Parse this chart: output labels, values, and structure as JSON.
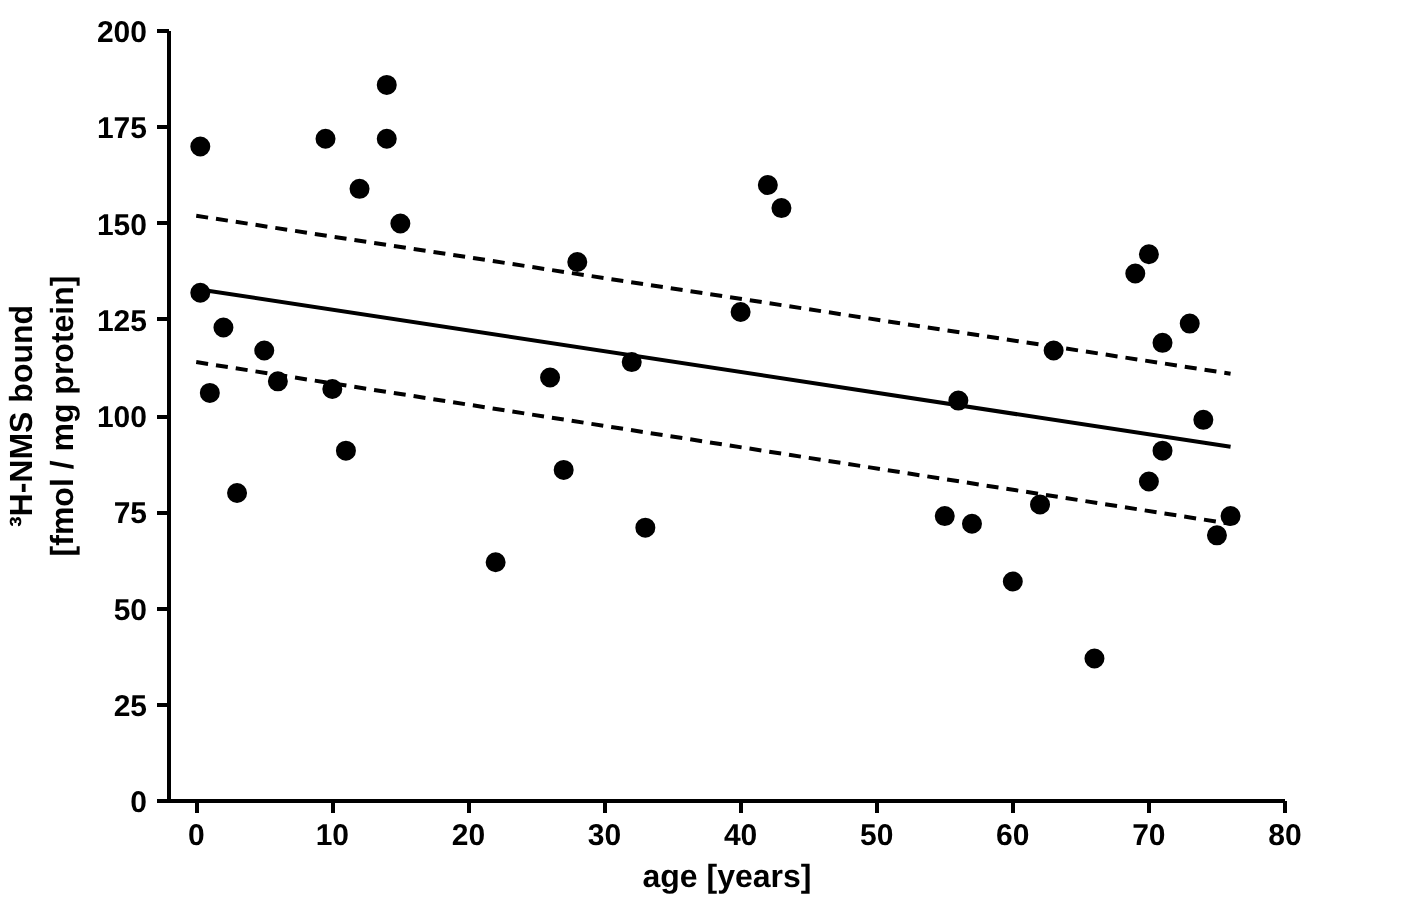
{
  "chart_data": {
    "type": "scatter",
    "xlabel": "age [years]",
    "ylabel": "³H-NMS bound\n[fmol / mg protein]",
    "xlim": [
      -2,
      80
    ],
    "ylim": [
      0,
      200
    ],
    "xticks": [
      0,
      10,
      20,
      30,
      40,
      50,
      60,
      70,
      80
    ],
    "yticks": [
      0,
      25,
      50,
      75,
      100,
      125,
      150,
      175,
      200
    ],
    "grid": false,
    "series": [
      {
        "marker": "circle",
        "color": "#000000",
        "x": [
          0.3,
          0.3,
          1,
          2,
          3,
          5,
          6,
          9.5,
          10,
          11,
          12,
          14,
          14,
          15,
          22,
          26,
          27,
          28,
          32,
          33,
          40,
          42,
          43,
          55,
          56,
          57,
          60,
          62,
          63,
          66,
          69,
          70,
          70,
          71,
          71,
          73,
          74,
          75,
          76
        ],
        "values": [
          170,
          132,
          106,
          123,
          80,
          117,
          109,
          172,
          107,
          91,
          159,
          186,
          172,
          150,
          62,
          110,
          86,
          140,
          114,
          71,
          127,
          160,
          154,
          74,
          104,
          72,
          57,
          77,
          117,
          37,
          137,
          142,
          83,
          119,
          91,
          124,
          99,
          69,
          74
        ]
      },
      {
        "type": "line",
        "line_style": "solid",
        "color": "#000000",
        "x": [
          0,
          76
        ],
        "values": [
          133,
          92
        ]
      },
      {
        "type": "line",
        "line_style": "dashed",
        "color": "#000000",
        "x": [
          0,
          76
        ],
        "values": [
          152,
          111
        ]
      },
      {
        "type": "line",
        "line_style": "dashed",
        "color": "#000000",
        "x": [
          0,
          76
        ],
        "values": [
          114,
          72
        ]
      }
    ]
  }
}
